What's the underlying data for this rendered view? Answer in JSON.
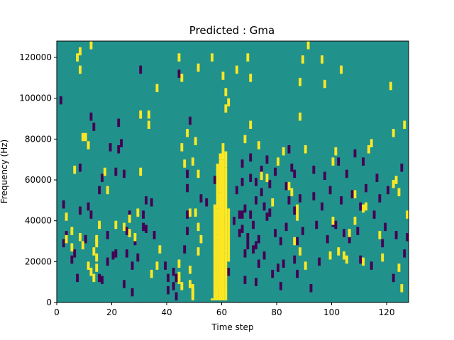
{
  "chart_data": {
    "type": "heatmap",
    "title": "Predicted : Gma",
    "xlabel": "Time step",
    "ylabel": "Frequency (Hz)",
    "xlim": [
      0,
      128
    ],
    "ylim": [
      0,
      128000
    ],
    "xticks": [
      0,
      20,
      40,
      60,
      80,
      100,
      120
    ],
    "yticks": [
      0,
      20000,
      40000,
      60000,
      80000,
      100000,
      120000
    ],
    "grid": false,
    "legend": "none",
    "colormap": "viridis",
    "colors": {
      "background": "#21918c",
      "high": "#fde725",
      "low": "#440154"
    },
    "yellow_cells": [
      [
        12,
        124
      ],
      [
        8,
        121
      ],
      [
        7,
        118
      ],
      [
        8,
        112
      ],
      [
        10,
        79
      ],
      [
        9,
        79
      ],
      [
        11,
        75
      ],
      [
        6,
        63
      ],
      [
        3,
        40
      ],
      [
        5,
        33
      ],
      [
        3,
        29
      ],
      [
        5,
        25
      ],
      [
        8,
        30
      ],
      [
        9,
        26
      ],
      [
        11,
        16
      ],
      [
        12,
        13
      ],
      [
        13,
        10
      ],
      [
        14,
        15
      ],
      [
        14,
        20
      ],
      [
        13,
        23
      ],
      [
        14,
        27
      ],
      [
        14,
        29
      ],
      [
        15,
        36
      ],
      [
        17,
        62
      ],
      [
        18,
        53
      ],
      [
        21,
        36
      ],
      [
        24,
        35
      ],
      [
        26,
        32
      ],
      [
        26,
        39
      ],
      [
        28,
        30
      ],
      [
        29,
        42
      ],
      [
        30,
        62
      ],
      [
        30,
        90
      ],
      [
        33,
        90
      ],
      [
        33,
        85
      ],
      [
        34,
        12
      ],
      [
        36,
        103
      ],
      [
        36,
        16
      ],
      [
        37,
        24
      ],
      [
        44,
        9
      ],
      [
        44,
        11
      ],
      [
        45,
        6
      ],
      [
        44,
        17
      ],
      [
        45,
        74
      ],
      [
        46,
        66
      ],
      [
        48,
        42
      ],
      [
        48,
        14
      ],
      [
        48,
        7
      ],
      [
        49,
        1
      ],
      [
        49,
        3
      ],
      [
        49,
        5
      ],
      [
        49,
        2
      ],
      [
        47,
        81
      ],
      [
        50,
        77
      ],
      [
        51,
        61
      ],
      [
        49,
        67
      ],
      [
        50,
        42
      ],
      [
        51,
        35
      ],
      [
        51,
        23
      ],
      [
        52,
        29
      ],
      [
        44,
        118
      ],
      [
        45,
        108
      ],
      [
        51,
        113
      ],
      [
        56,
        118
      ],
      [
        60,
        109
      ],
      [
        61,
        101
      ],
      [
        61,
        93
      ],
      [
        62,
        96
      ],
      [
        65,
        112
      ],
      [
        69,
        118
      ],
      [
        70,
        108
      ],
      [
        70,
        85
      ],
      [
        68,
        78
      ],
      [
        73,
        75
      ],
      [
        74,
        60
      ],
      [
        76,
        59
      ],
      [
        78,
        47
      ],
      [
        80,
        67
      ],
      [
        82,
        72
      ],
      [
        84,
        55
      ],
      [
        85,
        52
      ],
      [
        87,
        44
      ],
      [
        87,
        40
      ],
      [
        86,
        28
      ],
      [
        88,
        23
      ],
      [
        90,
        16
      ],
      [
        90,
        73
      ],
      [
        88,
        89
      ],
      [
        88,
        106
      ],
      [
        89,
        117
      ],
      [
        91,
        124
      ],
      [
        96,
        117
      ],
      [
        97,
        105
      ],
      [
        103,
        112
      ],
      [
        101,
        72
      ],
      [
        100,
        67
      ],
      [
        100,
        38
      ],
      [
        99,
        21
      ],
      [
        102,
        23
      ],
      [
        104,
        21
      ],
      [
        105,
        19
      ],
      [
        106,
        32
      ],
      [
        108,
        38
      ],
      [
        108,
        51
      ],
      [
        111,
        44
      ],
      [
        111,
        18
      ],
      [
        112,
        45
      ],
      [
        113,
        73
      ],
      [
        114,
        76
      ],
      [
        117,
        31
      ],
      [
        118,
        20
      ],
      [
        121,
        104
      ],
      [
        122,
        81
      ],
      [
        122,
        56
      ],
      [
        123,
        58
      ],
      [
        124,
        52
      ],
      [
        124,
        15
      ],
      [
        125,
        5
      ],
      [
        126,
        85
      ],
      [
        127,
        41
      ]
    ],
    "purple_cells": [
      [
        1,
        97
      ],
      [
        2,
        46
      ],
      [
        2,
        27
      ],
      [
        3,
        31
      ],
      [
        5,
        19
      ],
      [
        6,
        22
      ],
      [
        8,
        64
      ],
      [
        8,
        43
      ],
      [
        7,
        10
      ],
      [
        10,
        29
      ],
      [
        11,
        45
      ],
      [
        12,
        89
      ],
      [
        12,
        41
      ],
      [
        13,
        84
      ],
      [
        15,
        53
      ],
      [
        15,
        10
      ],
      [
        16,
        59
      ],
      [
        16,
        9
      ],
      [
        18,
        18
      ],
      [
        18,
        31
      ],
      [
        19,
        74
      ],
      [
        20,
        21
      ],
      [
        21,
        62
      ],
      [
        21,
        22
      ],
      [
        22,
        86
      ],
      [
        22,
        73
      ],
      [
        23,
        76
      ],
      [
        24,
        7
      ],
      [
        24,
        61
      ],
      [
        25,
        33
      ],
      [
        25,
        22
      ],
      [
        26,
        41
      ],
      [
        27,
        3
      ],
      [
        27,
        16
      ],
      [
        28,
        28
      ],
      [
        29,
        20
      ],
      [
        30,
        112
      ],
      [
        31,
        41
      ],
      [
        31,
        35
      ],
      [
        32,
        34
      ],
      [
        32,
        48
      ],
      [
        34,
        47
      ],
      [
        35,
        31
      ],
      [
        39,
        16
      ],
      [
        40,
        10
      ],
      [
        40,
        4
      ],
      [
        42,
        13
      ],
      [
        42,
        6
      ],
      [
        43,
        1
      ],
      [
        43,
        10
      ],
      [
        44,
        110
      ],
      [
        46,
        24
      ],
      [
        47,
        41
      ],
      [
        47,
        33
      ],
      [
        47,
        54
      ],
      [
        47,
        61
      ],
      [
        48,
        87
      ],
      [
        52,
        49
      ],
      [
        54,
        47
      ],
      [
        57,
        58
      ],
      [
        58,
        15
      ],
      [
        59,
        4
      ],
      [
        60,
        38
      ],
      [
        62,
        13
      ],
      [
        64,
        38
      ],
      [
        65,
        53
      ],
      [
        66,
        41
      ],
      [
        66,
        32
      ],
      [
        67,
        41
      ],
      [
        67,
        34
      ],
      [
        67,
        57
      ],
      [
        67,
        66
      ],
      [
        68,
        9
      ],
      [
        68,
        22
      ],
      [
        68,
        44
      ],
      [
        69,
        26
      ],
      [
        69,
        30
      ],
      [
        70,
        41
      ],
      [
        70,
        59
      ],
      [
        70,
        69
      ],
      [
        71,
        24
      ],
      [
        71,
        36
      ],
      [
        72,
        8
      ],
      [
        72,
        26
      ],
      [
        72,
        48
      ],
      [
        72,
        57
      ],
      [
        73,
        17
      ],
      [
        73,
        29
      ],
      [
        74,
        52
      ],
      [
        74,
        63
      ],
      [
        75,
        45
      ],
      [
        75,
        21
      ],
      [
        76,
        40
      ],
      [
        76,
        68
      ],
      [
        77,
        42
      ],
      [
        77,
        56
      ],
      [
        78,
        12
      ],
      [
        79,
        62
      ],
      [
        79,
        32
      ],
      [
        80,
        15
      ],
      [
        81,
        6
      ],
      [
        81,
        28
      ],
      [
        82,
        17
      ],
      [
        83,
        55
      ],
      [
        83,
        35
      ],
      [
        84,
        48
      ],
      [
        84,
        73
      ],
      [
        85,
        64
      ],
      [
        86,
        19
      ],
      [
        86,
        43
      ],
      [
        86,
        61
      ],
      [
        87,
        28
      ],
      [
        87,
        12
      ],
      [
        88,
        49
      ],
      [
        89,
        33
      ],
      [
        92,
        5
      ],
      [
        93,
        50
      ],
      [
        93,
        63
      ],
      [
        94,
        36
      ],
      [
        95,
        18
      ],
      [
        96,
        45
      ],
      [
        97,
        60
      ],
      [
        98,
        29
      ],
      [
        99,
        53
      ],
      [
        100,
        37
      ],
      [
        101,
        36
      ],
      [
        102,
        67
      ],
      [
        103,
        48
      ],
      [
        104,
        32
      ],
      [
        105,
        61
      ],
      [
        106,
        29
      ],
      [
        107,
        51
      ],
      [
        108,
        71
      ],
      [
        109,
        33
      ],
      [
        110,
        19
      ],
      [
        110,
        45
      ],
      [
        111,
        67
      ],
      [
        112,
        54
      ],
      [
        114,
        16
      ],
      [
        115,
        41
      ],
      [
        116,
        59
      ],
      [
        117,
        49
      ],
      [
        118,
        27
      ],
      [
        119,
        35
      ],
      [
        120,
        53
      ],
      [
        122,
        10
      ],
      [
        123,
        31
      ],
      [
        125,
        64
      ],
      [
        126,
        22
      ],
      [
        127,
        30
      ]
    ],
    "yellow_band": [
      [
        56,
        1,
        2
      ],
      [
        57,
        1,
        5
      ],
      [
        57,
        5,
        8
      ],
      [
        57,
        8,
        30
      ],
      [
        57,
        30,
        48
      ],
      [
        58,
        1,
        4
      ],
      [
        58,
        3,
        33
      ],
      [
        58,
        33,
        46
      ],
      [
        58,
        46,
        68
      ],
      [
        59,
        1,
        54
      ],
      [
        59,
        54,
        70
      ],
      [
        59,
        70,
        73
      ],
      [
        60,
        1,
        70
      ],
      [
        60,
        70,
        76
      ],
      [
        60,
        76,
        78
      ],
      [
        61,
        1,
        8
      ],
      [
        61,
        8,
        24
      ],
      [
        61,
        24,
        66
      ],
      [
        61,
        66,
        74
      ],
      [
        62,
        20,
        33
      ],
      [
        62,
        33,
        46
      ]
    ]
  }
}
